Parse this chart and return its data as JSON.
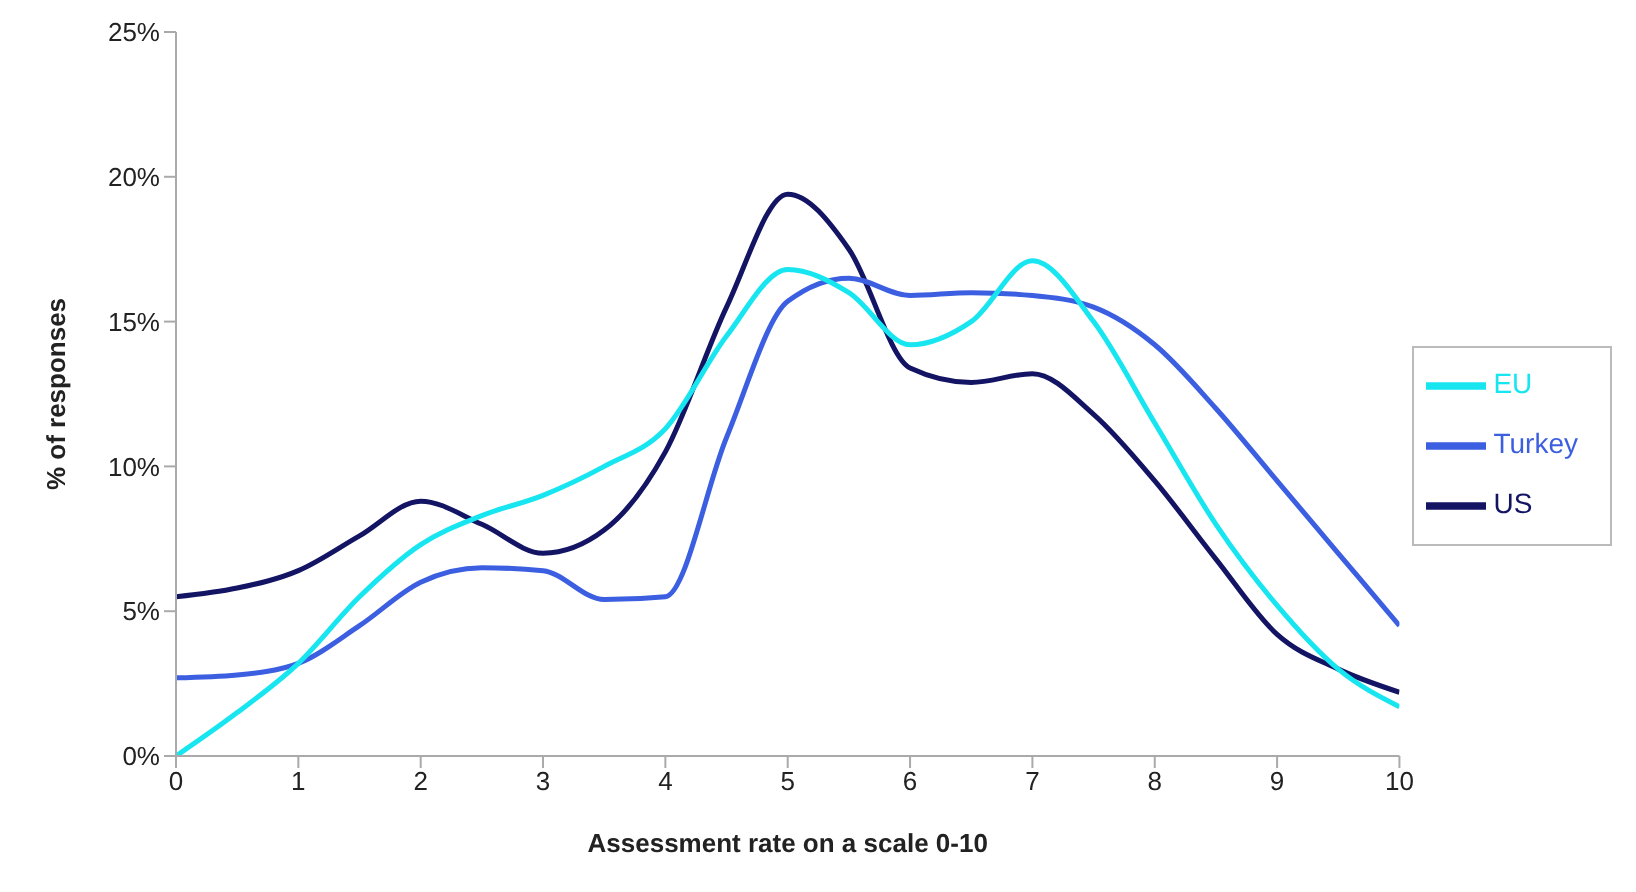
{
  "chart_data": {
    "type": "line",
    "xlabel": "Assessment rate on a scale 0-10",
    "ylabel": "% of responses",
    "x": [
      0,
      0.5,
      1,
      1.5,
      2,
      2.5,
      3,
      3.5,
      4,
      4.5,
      5,
      5.5,
      6,
      6.5,
      7,
      7.5,
      8,
      8.5,
      9,
      9.5,
      10
    ],
    "series": [
      {
        "name": "US",
        "color": "#141464",
        "values": [
          5.5,
          5.8,
          6.4,
          7.6,
          8.8,
          8.0,
          7.0,
          7.8,
          10.5,
          15.5,
          19.4,
          17.5,
          13.4,
          12.9,
          13.2,
          11.8,
          9.5,
          6.8,
          4.2,
          3.0,
          2.2
        ]
      },
      {
        "name": "Turkey",
        "color": "#3b5fe0",
        "values": [
          2.7,
          2.8,
          3.2,
          4.5,
          6.0,
          6.5,
          6.4,
          5.4,
          5.5,
          11.0,
          15.7,
          16.5,
          15.9,
          16.0,
          15.9,
          15.5,
          14.2,
          12.0,
          9.5,
          7.0,
          4.5
        ]
      },
      {
        "name": "EU",
        "color": "#17e6f0",
        "values": [
          0,
          1.5,
          3.2,
          5.5,
          7.3,
          8.3,
          9.0,
          10.0,
          11.3,
          14.5,
          16.8,
          16.0,
          14.2,
          15.0,
          17.1,
          15.0,
          11.5,
          8.0,
          5.2,
          3.0,
          1.7
        ]
      }
    ],
    "xlim": [
      0,
      10
    ],
    "xticks": [
      0,
      1,
      2,
      3,
      4,
      5,
      6,
      7,
      8,
      9,
      10
    ],
    "ylim": [
      0,
      25
    ],
    "yticks": [
      {
        "value": 0,
        "label": "0%"
      },
      {
        "value": 5,
        "label": "5%"
      },
      {
        "value": 10,
        "label": "10%"
      },
      {
        "value": 15,
        "label": "15%"
      },
      {
        "value": 20,
        "label": "20%"
      },
      {
        "value": 25,
        "label": "25%"
      }
    ],
    "grid": false,
    "legend": "right",
    "marker": "none",
    "line_style": "solid"
  }
}
